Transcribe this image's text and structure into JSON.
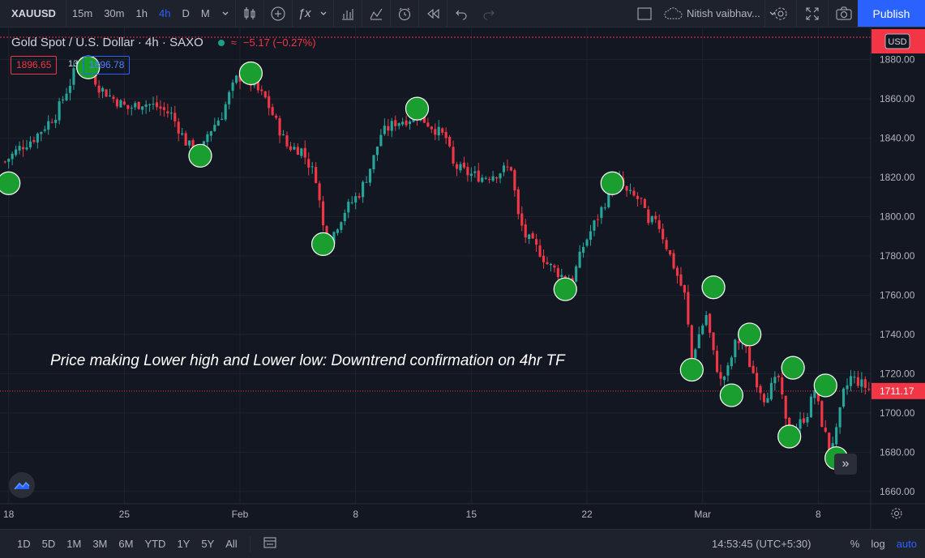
{
  "toolbar": {
    "symbol": "XAUUSD",
    "intervals": [
      "15m",
      "30m",
      "1h",
      "4h",
      "D",
      "M"
    ],
    "active_interval": "4h",
    "user_name": "Nitish vaibhav...",
    "publish_label": "Publish"
  },
  "legend": {
    "title": "Gold Spot / U.S. Dollar · 4h · SAXO",
    "change": "−5.17 (−0.27%)",
    "bid": "1896.65",
    "spread": "13",
    "ask": "1896.78"
  },
  "annotation": "Price making Lower high and Lower low: Downtrend confirmation on 4hr TF",
  "price_axis": {
    "currency": "USD",
    "last_price": "1711.17",
    "ticks": [
      "1880.00",
      "1860.00",
      "1840.00",
      "1820.00",
      "1800.00",
      "1780.00",
      "1760.00",
      "1740.00",
      "1720.00",
      "1700.00",
      "1680.00",
      "1660.00"
    ]
  },
  "time_axis": {
    "ticks": [
      "18",
      "25",
      "Feb",
      "8",
      "15",
      "22",
      "Mar",
      "8"
    ]
  },
  "bottom_bar": {
    "ranges": [
      "1D",
      "5D",
      "1M",
      "3M",
      "6M",
      "YTD",
      "1Y",
      "5Y",
      "All"
    ],
    "clock": "14:53:45 (UTC+5:30)",
    "percent_label": "%",
    "log_label": "log",
    "auto_label": "auto"
  },
  "colors": {
    "up": "#26a69a",
    "down": "#f23645",
    "marker": "#1a9e30",
    "background": "#131722",
    "accent": "#2962ff"
  },
  "chart_data": {
    "type": "candlestick",
    "ylim": [
      1655,
      1893
    ],
    "x_ticks": [
      {
        "label": "18",
        "i": 1
      },
      {
        "label": "25",
        "i": 33
      },
      {
        "label": "Feb",
        "i": 65
      },
      {
        "label": "8",
        "i": 97
      },
      {
        "label": "15",
        "i": 129
      },
      {
        "label": "22",
        "i": 161
      },
      {
        "label": "Mar",
        "i": 193
      },
      {
        "label": "8",
        "i": 225
      }
    ],
    "candles_count": 240,
    "close_path": [
      [
        0,
        1828
      ],
      [
        4,
        1835
      ],
      [
        8,
        1840
      ],
      [
        14,
        1852
      ],
      [
        18,
        1868
      ],
      [
        20,
        1878
      ],
      [
        22,
        1880
      ],
      [
        26,
        1866
      ],
      [
        30,
        1860
      ],
      [
        34,
        1855
      ],
      [
        38,
        1858
      ],
      [
        42,
        1856
      ],
      [
        46,
        1852
      ],
      [
        50,
        1838
      ],
      [
        52,
        1834
      ],
      [
        54,
        1830
      ],
      [
        56,
        1842
      ],
      [
        60,
        1852
      ],
      [
        62,
        1862
      ],
      [
        64,
        1870
      ],
      [
        66,
        1872
      ],
      [
        68,
        1868
      ],
      [
        72,
        1860
      ],
      [
        75,
        1848
      ],
      [
        78,
        1836
      ],
      [
        82,
        1834
      ],
      [
        86,
        1820
      ],
      [
        88,
        1795
      ],
      [
        90,
        1788
      ],
      [
        92,
        1796
      ],
      [
        94,
        1803
      ],
      [
        98,
        1812
      ],
      [
        100,
        1820
      ],
      [
        102,
        1830
      ],
      [
        104,
        1842
      ],
      [
        108,
        1848
      ],
      [
        112,
        1850
      ],
      [
        114,
        1852
      ],
      [
        118,
        1846
      ],
      [
        122,
        1840
      ],
      [
        124,
        1826
      ],
      [
        128,
        1822
      ],
      [
        132,
        1820
      ],
      [
        136,
        1822
      ],
      [
        138,
        1824
      ],
      [
        140,
        1825
      ],
      [
        142,
        1800
      ],
      [
        144,
        1790
      ],
      [
        148,
        1782
      ],
      [
        150,
        1776
      ],
      [
        154,
        1770
      ],
      [
        157,
        1768
      ],
      [
        160,
        1785
      ],
      [
        164,
        1800
      ],
      [
        168,
        1815
      ],
      [
        170,
        1818
      ],
      [
        172,
        1812
      ],
      [
        176,
        1808
      ],
      [
        178,
        1795
      ],
      [
        180,
        1800
      ],
      [
        182,
        1790
      ],
      [
        186,
        1770
      ],
      [
        188,
        1760
      ],
      [
        190,
        1728
      ],
      [
        192,
        1740
      ],
      [
        194,
        1750
      ],
      [
        196,
        1730
      ],
      [
        198,
        1716
      ],
      [
        200,
        1722
      ],
      [
        202,
        1735
      ],
      [
        204,
        1738
      ],
      [
        206,
        1725
      ],
      [
        208,
        1716
      ],
      [
        210,
        1708
      ],
      [
        214,
        1718
      ],
      [
        216,
        1695
      ],
      [
        218,
        1690
      ],
      [
        220,
        1695
      ],
      [
        222,
        1700
      ],
      [
        224,
        1712
      ],
      [
        226,
        1695
      ],
      [
        228,
        1682
      ],
      [
        230,
        1690
      ],
      [
        232,
        1710
      ],
      [
        234,
        1718
      ],
      [
        236,
        1716
      ],
      [
        239,
        1712
      ]
    ],
    "markers": [
      {
        "i": 1,
        "price": 1817
      },
      {
        "i": 23,
        "price": 1876
      },
      {
        "i": 54,
        "price": 1831
      },
      {
        "i": 68,
        "price": 1873
      },
      {
        "i": 88,
        "price": 1786
      },
      {
        "i": 114,
        "price": 1855
      },
      {
        "i": 155,
        "price": 1763
      },
      {
        "i": 168,
        "price": 1817
      },
      {
        "i": 190,
        "price": 1722
      },
      {
        "i": 196,
        "price": 1764
      },
      {
        "i": 201,
        "price": 1709
      },
      {
        "i": 206,
        "price": 1740
      },
      {
        "i": 217,
        "price": 1688
      },
      {
        "i": 218,
        "price": 1723
      },
      {
        "i": 227,
        "price": 1714
      },
      {
        "i": 230,
        "price": 1677
      }
    ]
  }
}
